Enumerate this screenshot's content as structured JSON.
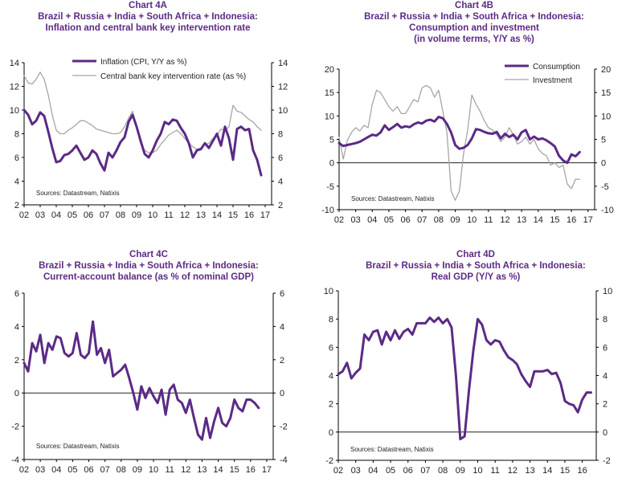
{
  "chart_data": [
    {
      "id": "A",
      "type": "line",
      "title": [
        "Chart 4A",
        "Brazil + Russia + India + South Africa + Indonesia:",
        "Inflation and central bank key intervention rate"
      ],
      "ylim": [
        2,
        14
      ],
      "y_ticks": [
        2,
        4,
        6,
        8,
        10,
        12,
        14
      ],
      "x_tick_labels": [
        "02",
        "03",
        "04",
        "05",
        "06",
        "07",
        "08",
        "09",
        "10",
        "11",
        "12",
        "13",
        "14",
        "15",
        "16",
        "17"
      ],
      "x_range": [
        2002,
        2017.4
      ],
      "zero_line": false,
      "source": "Sources: Datastream, Natixis",
      "series": [
        {
          "name": "Inflation (CPI, Y/Y as %)",
          "color": "#5b2a86",
          "width": 3,
          "x": [
            2002.0,
            2002.25,
            2002.5,
            2002.75,
            2003.0,
            2003.25,
            2003.5,
            2003.75,
            2004.0,
            2004.25,
            2004.5,
            2004.75,
            2005.0,
            2005.25,
            2005.5,
            2005.75,
            2006.0,
            2006.25,
            2006.5,
            2006.75,
            2007.0,
            2007.25,
            2007.5,
            2007.75,
            2008.0,
            2008.25,
            2008.5,
            2008.75,
            2009.0,
            2009.25,
            2009.5,
            2009.75,
            2010.0,
            2010.25,
            2010.5,
            2010.75,
            2011.0,
            2011.25,
            2011.5,
            2011.75,
            2012.0,
            2012.25,
            2012.5,
            2012.75,
            2013.0,
            2013.25,
            2013.5,
            2013.75,
            2014.0,
            2014.25,
            2014.5,
            2014.75,
            2015.0,
            2015.25,
            2015.5,
            2015.75,
            2016.0,
            2016.25,
            2016.5,
            2016.75
          ],
          "values": [
            10.0,
            9.6,
            8.8,
            9.1,
            9.8,
            9.5,
            8.2,
            6.8,
            5.6,
            5.7,
            6.2,
            6.3,
            6.6,
            7.0,
            6.4,
            5.8,
            6.0,
            6.6,
            6.3,
            5.5,
            4.9,
            6.4,
            6.0,
            6.6,
            7.3,
            7.7,
            9.0,
            9.6,
            8.6,
            7.4,
            6.3,
            6.0,
            6.6,
            7.4,
            8.0,
            9.0,
            8.8,
            9.2,
            9.1,
            8.5,
            8.0,
            7.2,
            6.0,
            6.6,
            6.7,
            7.2,
            6.8,
            7.4,
            8.0,
            7.0,
            8.6,
            7.6,
            5.8,
            8.4,
            8.6,
            8.3,
            8.4,
            6.6,
            5.8,
            4.5
          ]
        },
        {
          "name": "Central bank key intervention rate (as %)",
          "color": "#a6a6a6",
          "width": 1.3,
          "x": [
            2002.0,
            2002.25,
            2002.5,
            2002.75,
            2003.0,
            2003.25,
            2003.5,
            2003.75,
            2004.0,
            2004.25,
            2004.5,
            2004.75,
            2005.0,
            2005.25,
            2005.5,
            2005.75,
            2006.0,
            2006.25,
            2006.5,
            2006.75,
            2007.0,
            2007.25,
            2007.5,
            2007.75,
            2008.0,
            2008.25,
            2008.5,
            2008.75,
            2009.0,
            2009.25,
            2009.5,
            2009.75,
            2010.0,
            2010.25,
            2010.5,
            2010.75,
            2011.0,
            2011.25,
            2011.5,
            2011.75,
            2012.0,
            2012.25,
            2012.5,
            2012.75,
            2013.0,
            2013.25,
            2013.5,
            2013.75,
            2014.0,
            2014.25,
            2014.5,
            2014.75,
            2015.0,
            2015.25,
            2015.5,
            2015.75,
            2016.0,
            2016.25,
            2016.5,
            2016.75
          ],
          "values": [
            12.9,
            12.3,
            12.2,
            12.6,
            13.2,
            12.6,
            11.3,
            9.6,
            8.3,
            8.0,
            8.0,
            8.3,
            8.5,
            8.8,
            9.1,
            9.1,
            8.9,
            8.7,
            8.4,
            8.3,
            8.2,
            8.1,
            8.0,
            8.0,
            8.1,
            8.6,
            9.3,
            9.9,
            8.5,
            7.2,
            6.6,
            6.4,
            6.4,
            6.6,
            7.1,
            7.5,
            7.9,
            8.1,
            8.3,
            8.0,
            7.6,
            7.2,
            6.9,
            6.7,
            6.8,
            7.1,
            7.2,
            7.6,
            7.9,
            8.4,
            8.3,
            8.6,
            10.4,
            9.9,
            9.8,
            9.5,
            9.2,
            9.0,
            8.6,
            8.3
          ]
        }
      ]
    },
    {
      "id": "B",
      "type": "line",
      "title": [
        "Chart 4B",
        "Brazil + Russia + India + South Africa + Indonesia:",
        "Consumption and investment",
        "(in volume terms, Y/Y as %)"
      ],
      "ylim": [
        -10,
        20
      ],
      "y_ticks": [
        -10,
        -5,
        0,
        5,
        10,
        15,
        20
      ],
      "x_tick_labels": [
        "02",
        "03",
        "04",
        "05",
        "06",
        "07",
        "08",
        "09",
        "10",
        "11",
        "12",
        "13",
        "14",
        "15",
        "16",
        "17"
      ],
      "x_range": [
        2002,
        2017.4
      ],
      "zero_line": true,
      "source": "Sources: Datastream, Natixis",
      "series": [
        {
          "name": "Consumption",
          "color": "#5b2a86",
          "width": 3,
          "x": [
            2002.0,
            2002.25,
            2002.5,
            2002.75,
            2003.0,
            2003.25,
            2003.5,
            2003.75,
            2004.0,
            2004.25,
            2004.5,
            2004.75,
            2005.0,
            2005.25,
            2005.5,
            2005.75,
            2006.0,
            2006.25,
            2006.5,
            2006.75,
            2007.0,
            2007.25,
            2007.5,
            2007.75,
            2008.0,
            2008.25,
            2008.5,
            2008.75,
            2009.0,
            2009.25,
            2009.5,
            2009.75,
            2010.0,
            2010.25,
            2010.5,
            2010.75,
            2011.0,
            2011.25,
            2011.5,
            2011.75,
            2012.0,
            2012.25,
            2012.5,
            2012.75,
            2013.0,
            2013.25,
            2013.5,
            2013.75,
            2014.0,
            2014.25,
            2014.5,
            2014.75,
            2015.0,
            2015.25,
            2015.5,
            2015.75,
            2016.0,
            2016.25,
            2016.5
          ],
          "values": [
            4.2,
            3.6,
            3.8,
            4.0,
            4.2,
            4.5,
            5.0,
            5.5,
            6.0,
            5.8,
            6.5,
            8.0,
            7.0,
            7.6,
            8.3,
            7.5,
            7.8,
            7.6,
            8.2,
            8.6,
            8.4,
            9.0,
            9.2,
            8.8,
            9.8,
            9.5,
            8.3,
            6.5,
            3.8,
            3.0,
            3.2,
            3.8,
            5.2,
            7.2,
            7.0,
            6.6,
            6.3,
            6.2,
            6.6,
            5.2,
            6.2,
            5.5,
            6.0,
            5.0,
            6.5,
            7.0,
            5.0,
            5.6,
            5.0,
            5.2,
            4.8,
            4.2,
            3.5,
            1.5,
            0.5,
            0.0,
            1.8,
            1.4,
            2.3
          ]
        },
        {
          "name": "Investment",
          "color": "#a6a6a6",
          "width": 1.3,
          "x": [
            2002.0,
            2002.25,
            2002.5,
            2002.75,
            2003.0,
            2003.25,
            2003.5,
            2003.75,
            2004.0,
            2004.25,
            2004.5,
            2004.75,
            2005.0,
            2005.25,
            2005.5,
            2005.75,
            2006.0,
            2006.25,
            2006.5,
            2006.75,
            2007.0,
            2007.25,
            2007.5,
            2007.75,
            2008.0,
            2008.25,
            2008.5,
            2008.75,
            2009.0,
            2009.25,
            2009.5,
            2009.75,
            2010.0,
            2010.25,
            2010.5,
            2010.75,
            2011.0,
            2011.25,
            2011.5,
            2011.75,
            2012.0,
            2012.25,
            2012.5,
            2012.75,
            2013.0,
            2013.25,
            2013.5,
            2013.75,
            2014.0,
            2014.25,
            2014.5,
            2014.75,
            2015.0,
            2015.25,
            2015.5,
            2015.75,
            2016.0,
            2016.25,
            2016.5
          ],
          "values": [
            5.5,
            0.8,
            4.8,
            6.5,
            7.5,
            6.8,
            8.0,
            7.5,
            12.5,
            15.5,
            15.0,
            13.5,
            12.0,
            11.0,
            12.0,
            10.5,
            10.5,
            12.0,
            13.5,
            13.0,
            16.0,
            16.5,
            16.0,
            14.0,
            15.5,
            11.0,
            6.5,
            -6.0,
            -8.0,
            -6.0,
            2.0,
            7.0,
            14.5,
            12.5,
            11.0,
            9.0,
            7.5,
            7.0,
            6.0,
            4.5,
            5.5,
            7.5,
            6.0,
            4.0,
            4.5,
            5.5,
            4.0,
            5.0,
            3.0,
            2.0,
            1.5,
            -0.5,
            0.0,
            -1.0,
            -0.5,
            -4.5,
            -5.5,
            -3.5,
            -3.5
          ]
        }
      ]
    },
    {
      "id": "C",
      "type": "line",
      "title": [
        "Chart 4C",
        "Brazil + Russia + India + South Africa + Indonesia:",
        "Current-account balance (as % of nominal GDP)"
      ],
      "ylim": [
        -4,
        6
      ],
      "y_ticks": [
        -4,
        -2,
        0,
        2,
        4,
        6
      ],
      "x_tick_labels": [
        "02",
        "03",
        "04",
        "05",
        "06",
        "07",
        "08",
        "09",
        "10",
        "11",
        "12",
        "13",
        "14",
        "15",
        "16",
        "17"
      ],
      "x_range": [
        2002,
        2017.4
      ],
      "zero_line": true,
      "source": "Sources: Datastream, Natixis",
      "series": [
        {
          "name": "Current-account balance",
          "color": "#5b2a86",
          "width": 3,
          "x": [
            2002.0,
            2002.25,
            2002.5,
            2002.75,
            2003.0,
            2003.25,
            2003.5,
            2003.75,
            2004.0,
            2004.25,
            2004.5,
            2004.75,
            2005.0,
            2005.25,
            2005.5,
            2005.75,
            2006.0,
            2006.25,
            2006.5,
            2006.75,
            2007.0,
            2007.25,
            2007.5,
            2007.75,
            2008.0,
            2008.25,
            2008.5,
            2008.75,
            2009.0,
            2009.25,
            2009.5,
            2009.75,
            2010.0,
            2010.25,
            2010.5,
            2010.75,
            2011.0,
            2011.25,
            2011.5,
            2011.75,
            2012.0,
            2012.25,
            2012.5,
            2012.75,
            2013.0,
            2013.25,
            2013.5,
            2013.75,
            2014.0,
            2014.25,
            2014.5,
            2014.75,
            2015.0,
            2015.25,
            2015.5,
            2015.75,
            2016.0,
            2016.25,
            2016.5
          ],
          "values": [
            1.8,
            1.3,
            3.0,
            2.5,
            3.5,
            1.8,
            3.0,
            2.6,
            3.4,
            3.3,
            2.4,
            2.2,
            2.4,
            3.6,
            2.3,
            2.1,
            2.4,
            4.3,
            2.3,
            2.7,
            1.8,
            2.6,
            1.0,
            1.2,
            1.4,
            1.7,
            0.9,
            0.0,
            -1.0,
            0.4,
            -0.3,
            0.3,
            -0.2,
            -0.6,
            0.2,
            -1.3,
            0.2,
            0.5,
            -0.4,
            -0.6,
            -1.2,
            -0.4,
            -1.5,
            -2.5,
            -2.8,
            -1.5,
            -2.7,
            -1.7,
            -0.9,
            -1.8,
            -2.0,
            -1.5,
            -0.4,
            -0.9,
            -1.1,
            -0.4,
            -0.4,
            -0.6,
            -0.9
          ]
        }
      ]
    },
    {
      "id": "D",
      "type": "line",
      "title": [
        "Chart 4D",
        "Brazil + Russia + India + South Africa + Indonesia:",
        "Real GDP (Y/Y as %)"
      ],
      "ylim": [
        -2,
        10
      ],
      "y_ticks": [
        -2,
        0,
        2,
        4,
        6,
        8,
        10
      ],
      "x_tick_labels": [
        "02",
        "03",
        "04",
        "05",
        "06",
        "07",
        "08",
        "09",
        "10",
        "11",
        "12",
        "13",
        "14",
        "15",
        "16"
      ],
      "x_range": [
        2002,
        2016.8
      ],
      "zero_line": true,
      "source": "Sources: Datastream, Natixis",
      "series": [
        {
          "name": "Real GDP",
          "color": "#5b2a86",
          "width": 3,
          "x": [
            2002.0,
            2002.25,
            2002.5,
            2002.75,
            2003.0,
            2003.25,
            2003.5,
            2003.75,
            2004.0,
            2004.25,
            2004.5,
            2004.75,
            2005.0,
            2005.25,
            2005.5,
            2005.75,
            2006.0,
            2006.25,
            2006.5,
            2006.75,
            2007.0,
            2007.25,
            2007.5,
            2007.75,
            2008.0,
            2008.25,
            2008.5,
            2008.75,
            2009.0,
            2009.25,
            2009.5,
            2009.75,
            2010.0,
            2010.25,
            2010.5,
            2010.75,
            2011.0,
            2011.25,
            2011.5,
            2011.75,
            2012.0,
            2012.25,
            2012.5,
            2012.75,
            2013.0,
            2013.25,
            2013.5,
            2013.75,
            2014.0,
            2014.25,
            2014.5,
            2014.75,
            2015.0,
            2015.25,
            2015.5,
            2015.75,
            2016.0,
            2016.25,
            2016.5
          ],
          "values": [
            4.1,
            4.3,
            4.9,
            3.8,
            4.2,
            4.5,
            6.9,
            6.5,
            7.1,
            7.2,
            6.2,
            7.1,
            6.5,
            7.2,
            6.6,
            7.1,
            7.3,
            6.9,
            7.7,
            7.7,
            7.7,
            8.1,
            7.8,
            8.1,
            7.7,
            8.0,
            7.4,
            4.0,
            -0.5,
            -0.3,
            3.0,
            5.8,
            8.0,
            7.6,
            6.5,
            6.2,
            6.5,
            6.4,
            5.8,
            5.3,
            5.1,
            4.8,
            4.1,
            3.6,
            3.2,
            4.3,
            4.3,
            4.3,
            4.4,
            4.1,
            4.2,
            3.5,
            2.2,
            2.0,
            1.9,
            1.4,
            2.3,
            2.8,
            2.8
          ]
        }
      ]
    }
  ]
}
